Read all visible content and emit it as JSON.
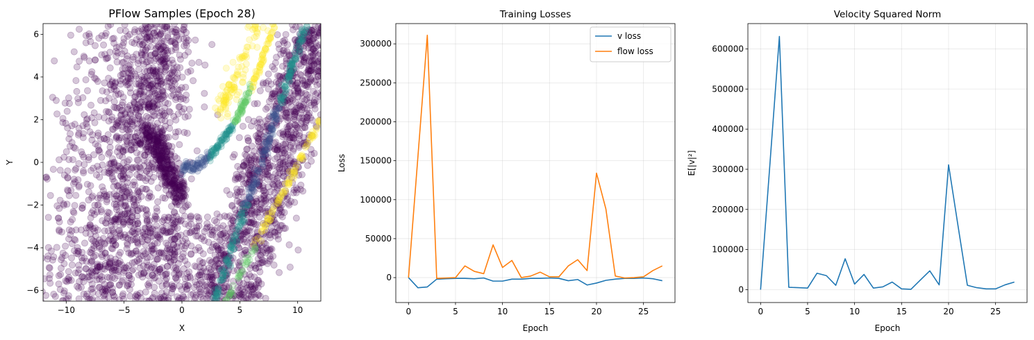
{
  "chart_data": [
    {
      "type": "scatter",
      "title": "PFlow Samples (Epoch 28)",
      "xlabel": "X",
      "ylabel": "Y",
      "xlim": [
        -12,
        12
      ],
      "ylim": [
        -6.5,
        6.5
      ],
      "xticks": [
        -10,
        -5,
        0,
        5,
        10
      ],
      "yticks": [
        -6,
        -4,
        -2,
        0,
        2,
        4,
        6
      ],
      "grid": false,
      "marker_alpha": 0.22,
      "colormap": [
        "#440154",
        "#3b528b",
        "#21918c",
        "#5ec962",
        "#fde725"
      ]
    },
    {
      "type": "line",
      "title": "Training Losses",
      "xlabel": "Epoch",
      "ylabel": "Loss",
      "xlim": [
        -1.35,
        28.35
      ],
      "ylim": [
        -32000,
        326000
      ],
      "xticks": [
        0,
        5,
        10,
        15,
        20,
        25
      ],
      "yticks": [
        0,
        50000,
        100000,
        150000,
        200000,
        250000,
        300000
      ],
      "grid": true,
      "legend": "top-right",
      "x": [
        0,
        1,
        2,
        3,
        4,
        5,
        6,
        7,
        8,
        9,
        10,
        11,
        12,
        13,
        14,
        15,
        16,
        17,
        18,
        19,
        20,
        21,
        22,
        23,
        24,
        25,
        26,
        27
      ],
      "series": [
        {
          "name": "v loss",
          "color": "#1f77b4",
          "values": [
            0,
            -13000,
            -12000,
            -2000,
            -1500,
            -1000,
            -1000,
            -1500,
            -500,
            -4500,
            -4500,
            -2000,
            -2000,
            -1000,
            -1000,
            -500,
            -1000,
            -4000,
            -2500,
            -9500,
            -7000,
            -3500,
            -2000,
            -1000,
            -1000,
            -500,
            -1500,
            -4000
          ]
        },
        {
          "name": "flow loss",
          "color": "#ff7f0e",
          "values": [
            0,
            155000,
            311000,
            -1000,
            -500,
            0,
            15000,
            8000,
            5000,
            42000,
            13000,
            22000,
            0,
            2000,
            7000,
            1000,
            1000,
            15000,
            23000,
            9000,
            134000,
            88000,
            2000,
            -500,
            0,
            1000,
            9000,
            15000
          ]
        }
      ]
    },
    {
      "type": "line",
      "title": "Velocity Squared Norm",
      "xlabel": "Epoch",
      "ylabel": "E[|v|²]",
      "xlim": [
        -1.35,
        28.35
      ],
      "ylim": [
        -32000,
        663000
      ],
      "xticks": [
        0,
        5,
        10,
        15,
        20,
        25
      ],
      "yticks": [
        0,
        100000,
        200000,
        300000,
        400000,
        500000,
        600000
      ],
      "grid": true,
      "x": [
        0,
        1,
        2,
        3,
        4,
        5,
        6,
        7,
        8,
        9,
        10,
        11,
        12,
        13,
        14,
        15,
        16,
        17,
        18,
        19,
        20,
        21,
        22,
        23,
        24,
        25,
        26,
        27
      ],
      "series": [
        {
          "color": "#1f77b4",
          "values": [
            0,
            315000,
            631000,
            6000,
            5000,
            4000,
            41000,
            35000,
            11000,
            77000,
            14000,
            38000,
            4000,
            7000,
            19000,
            2000,
            1000,
            24000,
            47000,
            12000,
            311000,
            160000,
            11000,
            5000,
            2000,
            2000,
            12000,
            19000
          ]
        }
      ]
    }
  ]
}
